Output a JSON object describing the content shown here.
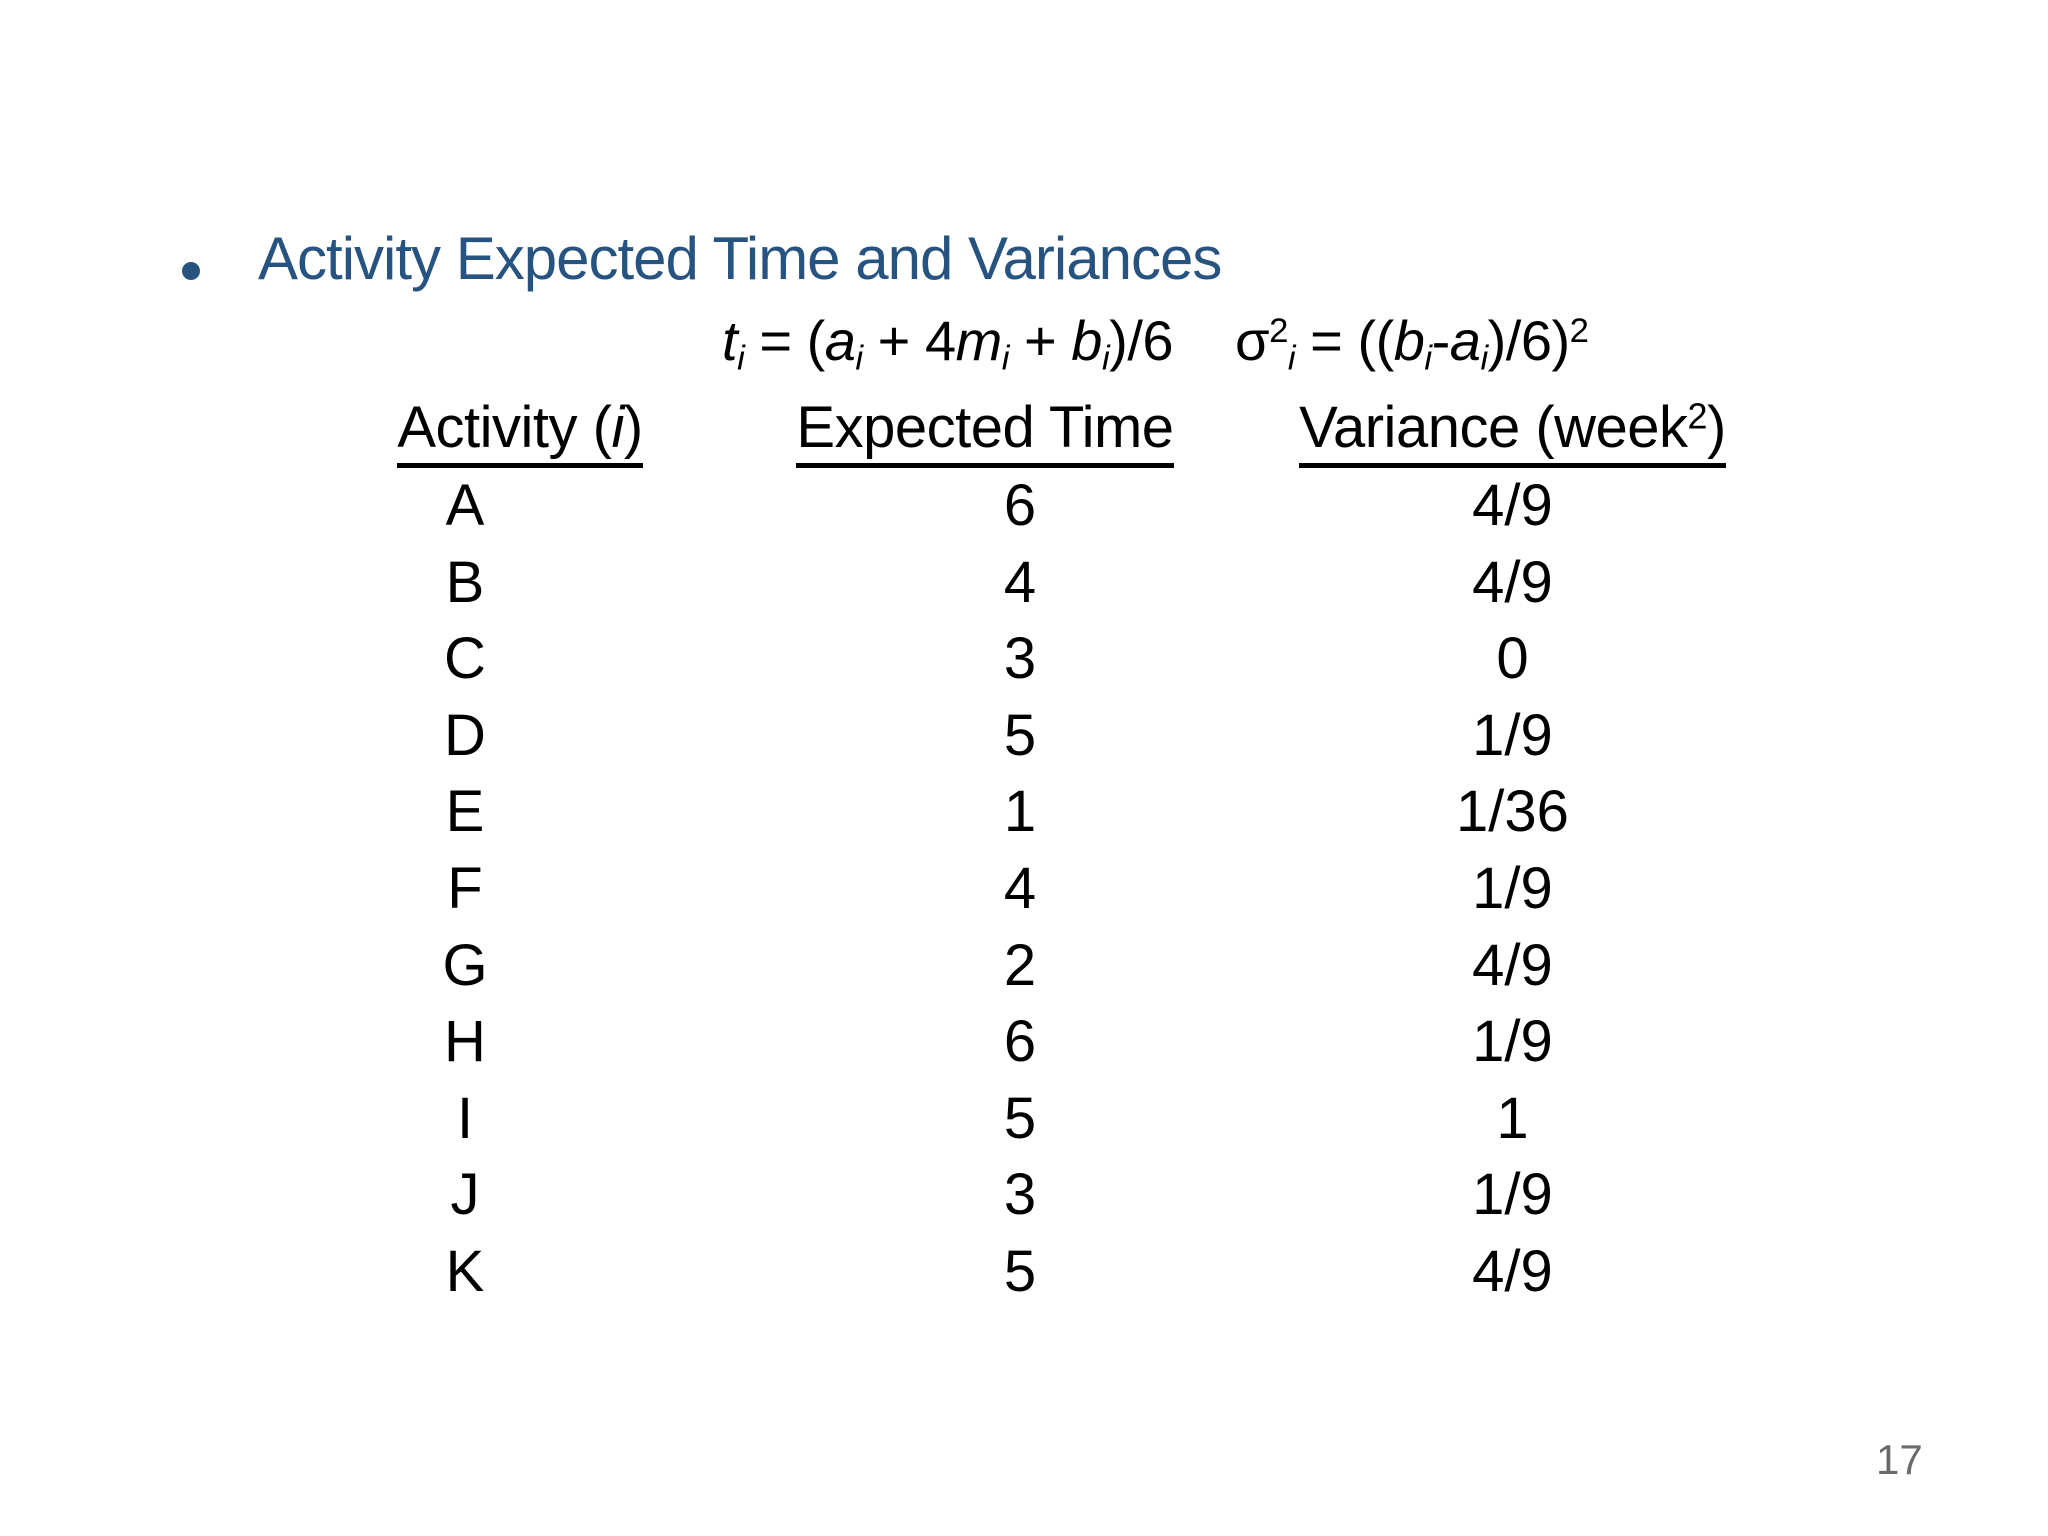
{
  "slide": {
    "background_color": "#ffffff",
    "title": {
      "text": "Activity Expected Time and Variances",
      "color": "#275381"
    },
    "formulas": {
      "expected_time_segments": [
        {
          "t": "t",
          "s": "i"
        },
        {
          "t": "i",
          "s": "sub"
        },
        {
          "t": " = (",
          "s": "n"
        },
        {
          "t": "a",
          "s": "i"
        },
        {
          "t": "i",
          "s": "sub"
        },
        {
          "t": " + 4",
          "s": "n"
        },
        {
          "t": "m",
          "s": "i"
        },
        {
          "t": "i",
          "s": "sub"
        },
        {
          "t": " + ",
          "s": "n"
        },
        {
          "t": "b",
          "s": "i"
        },
        {
          "t": "i",
          "s": "sub"
        },
        {
          "t": ")/6",
          "s": "n"
        }
      ],
      "variance_segments": [
        {
          "t": "σ",
          "s": "n"
        },
        {
          "t": "2",
          "s": "sup"
        },
        {
          "t": "i",
          "s": "sub"
        },
        {
          "t": " = ((",
          "s": "n"
        },
        {
          "t": "b",
          "s": "i"
        },
        {
          "t": "i",
          "s": "sub"
        },
        {
          "t": "-",
          "s": "n"
        },
        {
          "t": "a",
          "s": "i"
        },
        {
          "t": "i",
          "s": "sub"
        },
        {
          "t": ")/6)",
          "s": "n"
        },
        {
          "t": "2",
          "s": "sup"
        }
      ]
    },
    "table": {
      "headers": {
        "activity_segments": [
          {
            "t": "Activity (",
            "s": "n"
          },
          {
            "t": "i",
            "s": "i"
          },
          {
            "t": ")",
            "s": "n"
          }
        ],
        "expected_time_segments": [
          {
            "t": "Expected Time",
            "s": "n"
          }
        ],
        "variance_segments": [
          {
            "t": "Variance (week",
            "s": "n"
          },
          {
            "t": "2",
            "s": "sup"
          },
          {
            "t": ")",
            "s": "n"
          }
        ]
      },
      "rows": [
        {
          "activity": "A",
          "expected_time": "6",
          "variance": "4/9"
        },
        {
          "activity": "B",
          "expected_time": "4",
          "variance": "4/9"
        },
        {
          "activity": "C",
          "expected_time": "3",
          "variance": "0"
        },
        {
          "activity": "D",
          "expected_time": "5",
          "variance": "1/9"
        },
        {
          "activity": "E",
          "expected_time": "1",
          "variance": "1/36"
        },
        {
          "activity": "F",
          "expected_time": "4",
          "variance": "1/9"
        },
        {
          "activity": "G",
          "expected_time": "2",
          "variance": "4/9"
        },
        {
          "activity": "H",
          "expected_time": "6",
          "variance": "1/9"
        },
        {
          "activity": "I",
          "expected_time": "5",
          "variance": "1"
        },
        {
          "activity": "J",
          "expected_time": "3",
          "variance": "1/9"
        },
        {
          "activity": "K",
          "expected_time": "5",
          "variance": "4/9"
        }
      ]
    },
    "page_number": "17"
  }
}
